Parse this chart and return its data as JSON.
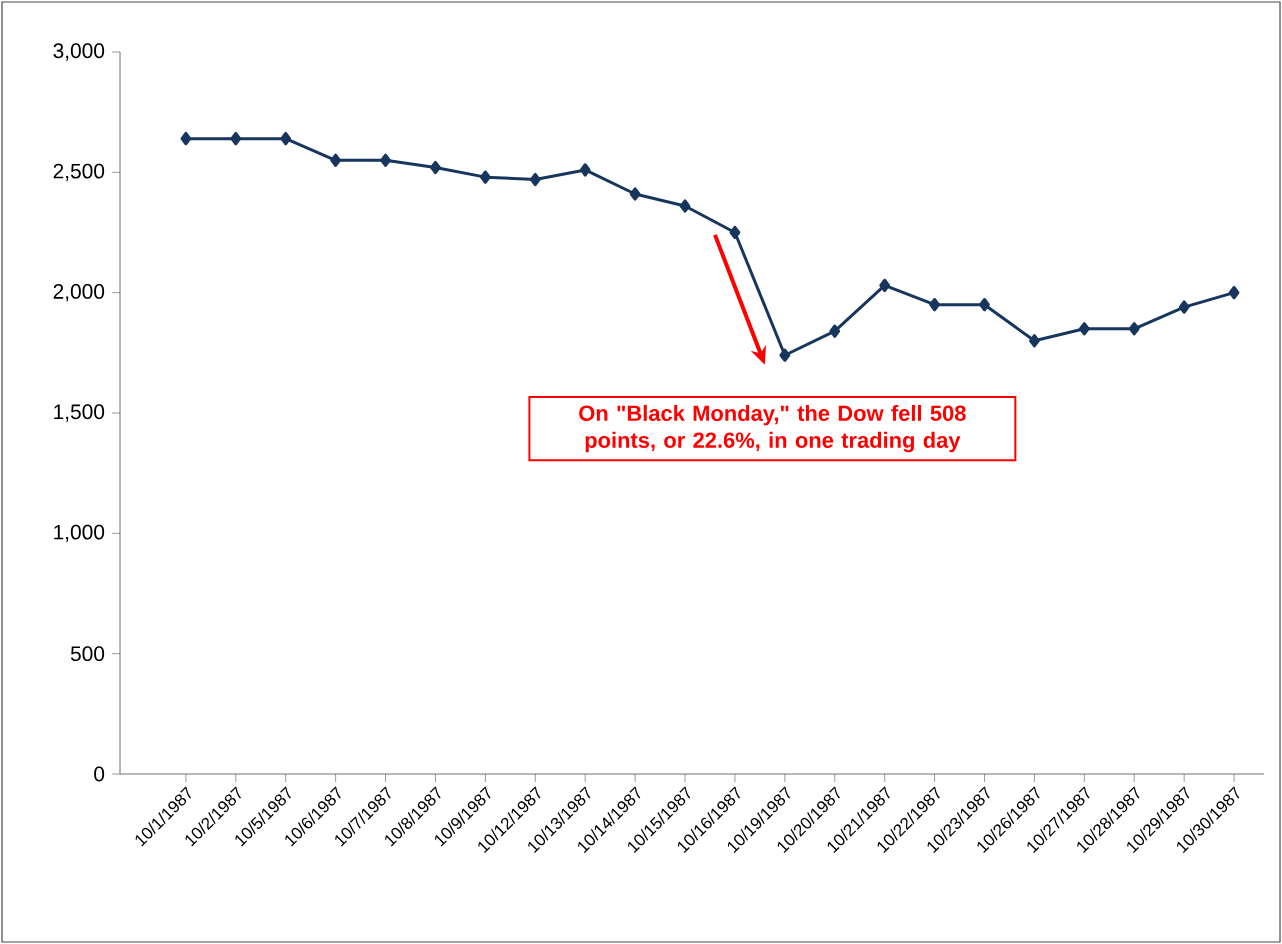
{
  "chart_data": {
    "type": "line",
    "categories": [
      "10/1/1987",
      "10/2/1987",
      "10/5/1987",
      "10/6/1987",
      "10/7/1987",
      "10/8/1987",
      "10/9/1987",
      "10/12/1987",
      "10/13/1987",
      "10/14/1987",
      "10/15/1987",
      "10/16/1987",
      "10/19/1987",
      "10/20/1987",
      "10/21/1987",
      "10/22/1987",
      "10/23/1987",
      "10/26/1987",
      "10/27/1987",
      "10/28/1987",
      "10/29/1987",
      "10/30/1987"
    ],
    "series": [
      {
        "color": "#17365d",
        "values": [
          2640,
          2640,
          2640,
          2550,
          2550,
          2520,
          2480,
          2470,
          2510,
          2410,
          2360,
          2250,
          1740,
          1840,
          2030,
          1950,
          1950,
          1800,
          1850,
          1850,
          1940,
          2000
        ]
      }
    ],
    "ylim": [
      0,
      3000
    ],
    "yticks": [
      0,
      500,
      {
        "value": 1000,
        "label": "1,000"
      },
      {
        "value": 1500,
        "label": "1,500"
      },
      {
        "value": 2000,
        "label": "2,000"
      },
      {
        "value": 2500,
        "label": "2,500"
      },
      {
        "value": 3000,
        "label": "3,000"
      }
    ],
    "marker": "diamond",
    "line_style": "solid",
    "annotations": [
      "On \"Black Monday,\" the Dow fell 508 points, or 22.6%, in one trading day"
    ]
  }
}
